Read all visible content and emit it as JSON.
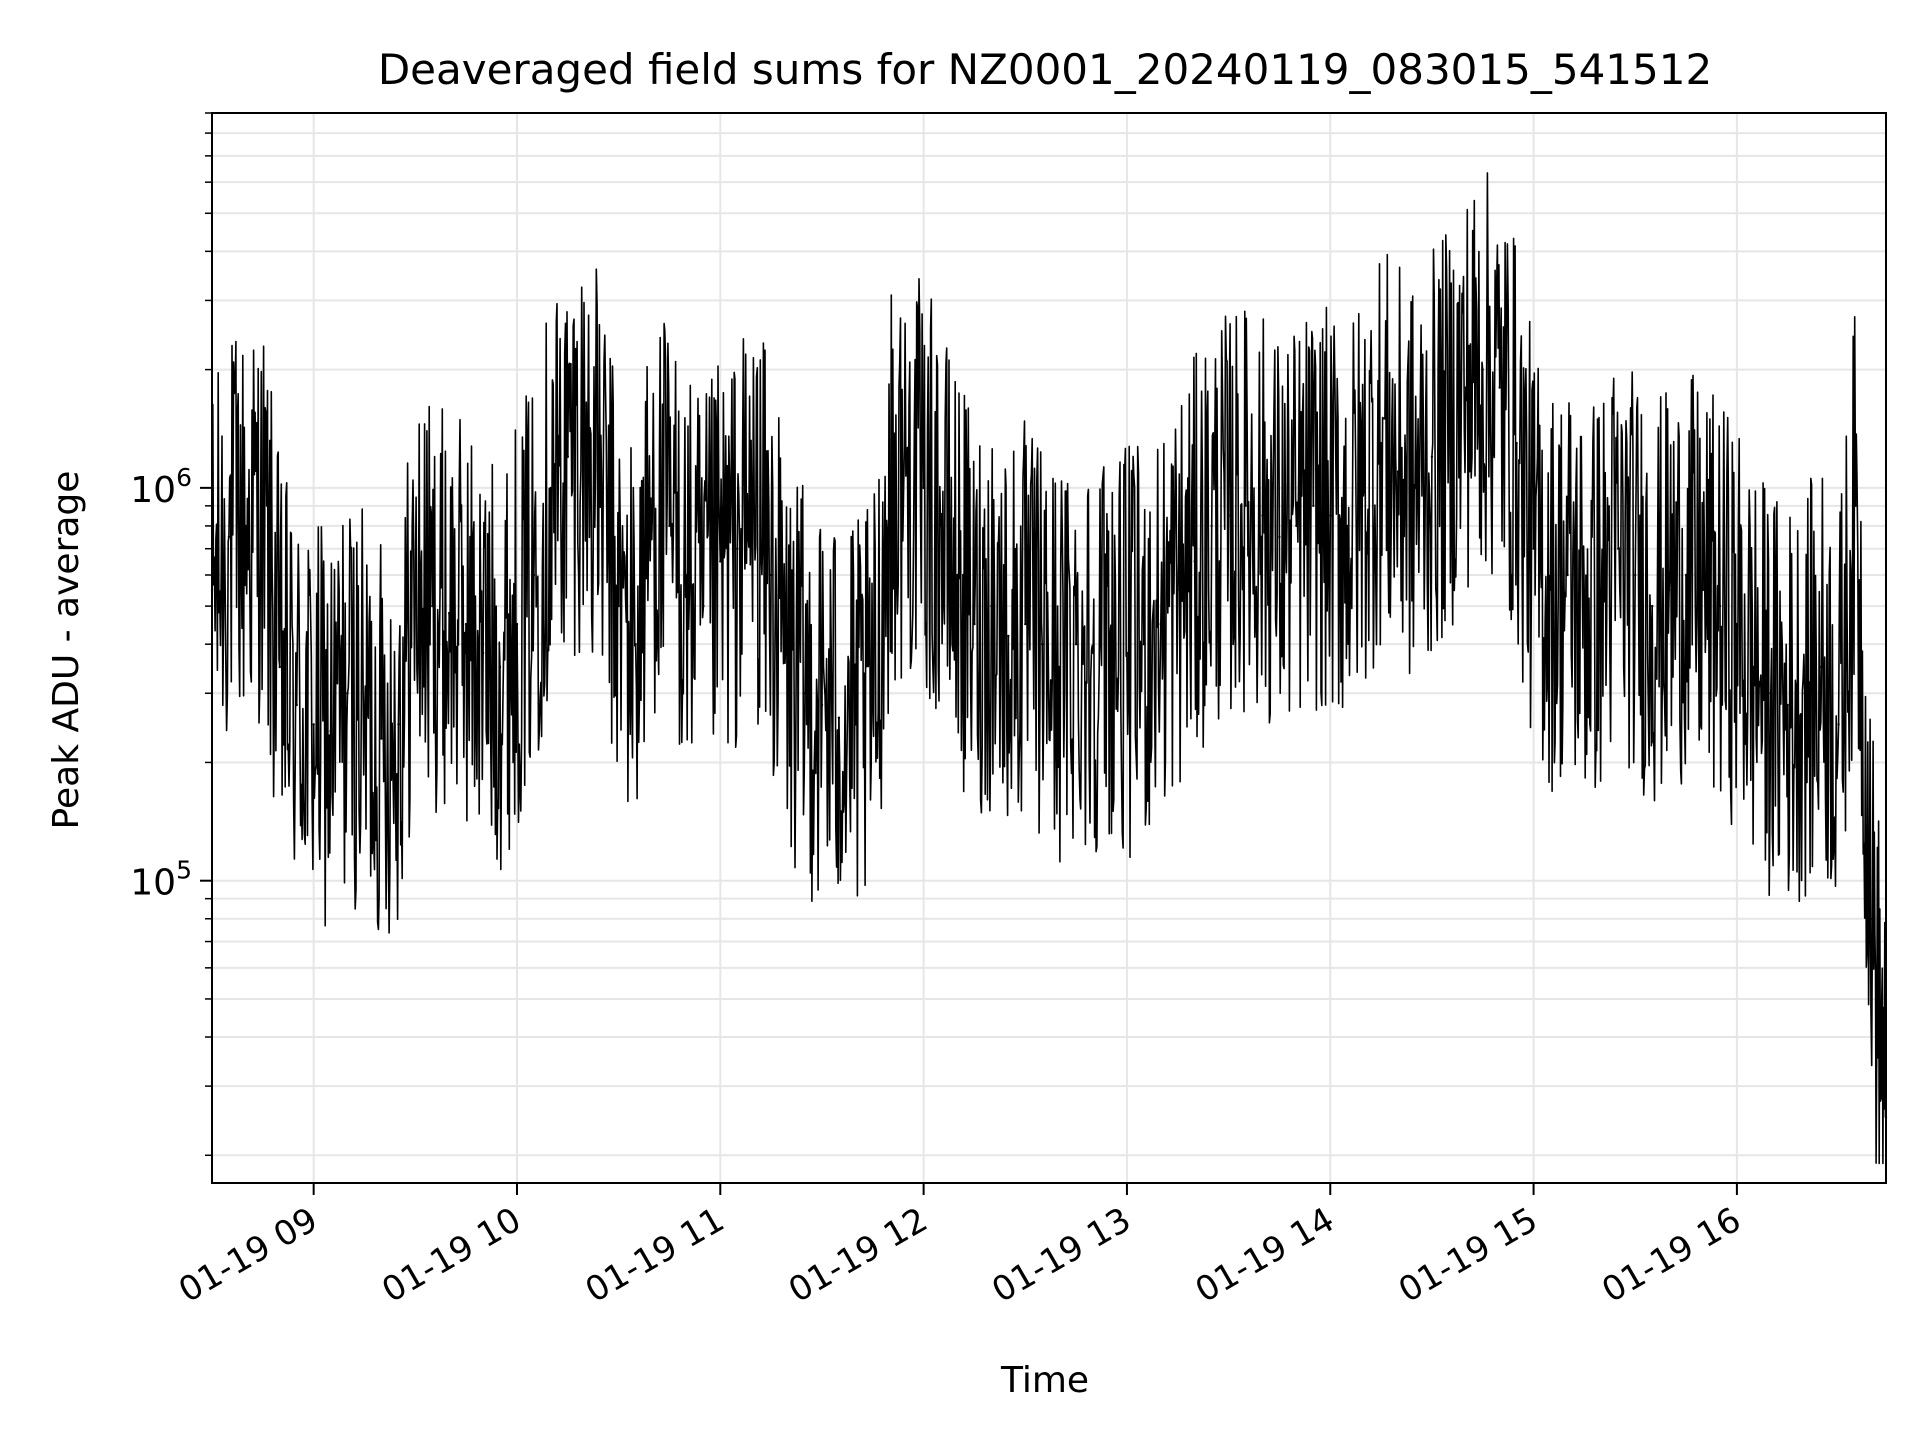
{
  "chart_data": {
    "type": "line",
    "title": "Deaveraged field sums for NZ0001_20240119_083015_541512",
    "xlabel": "Time",
    "ylabel": "Peak ADU - average",
    "y_scale": "log",
    "xlim": [
      "2024-01-19 08:30",
      "2024-01-19 16:44"
    ],
    "ylim": [
      17000,
      9000000
    ],
    "x_ticks": [
      {
        "time": "2024-01-19 09:00",
        "label": "01-19 09"
      },
      {
        "time": "2024-01-19 10:00",
        "label": "01-19 10"
      },
      {
        "time": "2024-01-19 11:00",
        "label": "01-19 11"
      },
      {
        "time": "2024-01-19 12:00",
        "label": "01-19 12"
      },
      {
        "time": "2024-01-19 13:00",
        "label": "01-19 13"
      },
      {
        "time": "2024-01-19 14:00",
        "label": "01-19 14"
      },
      {
        "time": "2024-01-19 15:00",
        "label": "01-19 15"
      },
      {
        "time": "2024-01-19 16:00",
        "label": "01-19 16"
      }
    ],
    "y_ticks": [
      {
        "value": 100000,
        "base": "10",
        "exp": "5"
      },
      {
        "value": 1000000,
        "base": "10",
        "exp": "6"
      }
    ],
    "grid": true,
    "line_color": "#000000",
    "grid_color": "#e6e6e6",
    "series": [
      {
        "points": [
          [
            "2024-01-19 08:30",
            550000
          ],
          [
            "2024-01-19 08:35",
            750000
          ],
          [
            "2024-01-19 08:40",
            800000
          ],
          [
            "2024-01-19 08:45",
            850000
          ],
          [
            "2024-01-19 08:50",
            350000
          ],
          [
            "2024-01-19 08:55",
            280000
          ],
          [
            "2024-01-19 09:00",
            250000
          ],
          [
            "2024-01-19 09:05",
            240000
          ],
          [
            "2024-01-19 09:10",
            300000
          ],
          [
            "2024-01-19 09:15",
            260000
          ],
          [
            "2024-01-19 09:20",
            230000
          ],
          [
            "2024-01-19 09:25",
            250000
          ],
          [
            "2024-01-19 09:30",
            550000
          ],
          [
            "2024-01-19 09:35",
            500000
          ],
          [
            "2024-01-19 09:40",
            480000
          ],
          [
            "2024-01-19 09:45",
            450000
          ],
          [
            "2024-01-19 09:50",
            380000
          ],
          [
            "2024-01-19 09:55",
            350000
          ],
          [
            "2024-01-19 10:00",
            450000
          ],
          [
            "2024-01-19 10:05",
            600000
          ],
          [
            "2024-01-19 10:10",
            1000000
          ],
          [
            "2024-01-19 10:15",
            1200000
          ],
          [
            "2024-01-19 10:20",
            1300000
          ],
          [
            "2024-01-19 10:25",
            1000000
          ],
          [
            "2024-01-19 10:30",
            500000
          ],
          [
            "2024-01-19 10:35",
            400000
          ],
          [
            "2024-01-19 10:40",
            900000
          ],
          [
            "2024-01-19 10:45",
            800000
          ],
          [
            "2024-01-19 10:50",
            600000
          ],
          [
            "2024-01-19 10:55",
            500000
          ],
          [
            "2024-01-19 11:00",
            650000
          ],
          [
            "2024-01-19 11:05",
            700000
          ],
          [
            "2024-01-19 11:10",
            900000
          ],
          [
            "2024-01-19 11:15",
            600000
          ],
          [
            "2024-01-19 11:20",
            350000
          ],
          [
            "2024-01-19 11:25",
            300000
          ],
          [
            "2024-01-19 11:30",
            280000
          ],
          [
            "2024-01-19 11:35",
            260000
          ],
          [
            "2024-01-19 11:40",
            250000
          ],
          [
            "2024-01-19 11:45",
            270000
          ],
          [
            "2024-01-19 11:50",
            950000
          ],
          [
            "2024-01-19 11:55",
            1100000
          ],
          [
            "2024-01-19 12:00",
            1000000
          ],
          [
            "2024-01-19 12:05",
            800000
          ],
          [
            "2024-01-19 12:10",
            600000
          ],
          [
            "2024-01-19 12:15",
            450000
          ],
          [
            "2024-01-19 12:20",
            500000
          ],
          [
            "2024-01-19 12:25",
            420000
          ],
          [
            "2024-01-19 12:30",
            450000
          ],
          [
            "2024-01-19 12:35",
            400000
          ],
          [
            "2024-01-19 12:40",
            350000
          ],
          [
            "2024-01-19 12:45",
            400000
          ],
          [
            "2024-01-19 12:50",
            380000
          ],
          [
            "2024-01-19 12:55",
            420000
          ],
          [
            "2024-01-19 13:00",
            380000
          ],
          [
            "2024-01-19 13:05",
            400000
          ],
          [
            "2024-01-19 13:10",
            450000
          ],
          [
            "2024-01-19 13:15",
            550000
          ],
          [
            "2024-01-19 13:20",
            650000
          ],
          [
            "2024-01-19 13:25",
            800000
          ],
          [
            "2024-01-19 13:30",
            850000
          ],
          [
            "2024-01-19 13:35",
            900000
          ],
          [
            "2024-01-19 13:40",
            850000
          ],
          [
            "2024-01-19 13:45",
            750000
          ],
          [
            "2024-01-19 13:50",
            800000
          ],
          [
            "2024-01-19 13:55",
            900000
          ],
          [
            "2024-01-19 14:00",
            850000
          ],
          [
            "2024-01-19 14:05",
            800000
          ],
          [
            "2024-01-19 14:10",
            1000000
          ],
          [
            "2024-01-19 14:15",
            1300000
          ],
          [
            "2024-01-19 14:20",
            1100000
          ],
          [
            "2024-01-19 14:25",
            1000000
          ],
          [
            "2024-01-19 14:30",
            1200000
          ],
          [
            "2024-01-19 14:35",
            1400000
          ],
          [
            "2024-01-19 14:40",
            1800000
          ],
          [
            "2024-01-19 14:45",
            2000000
          ],
          [
            "2024-01-19 14:50",
            1800000
          ],
          [
            "2024-01-19 14:55",
            1300000
          ],
          [
            "2024-01-19 15:00",
            700000
          ],
          [
            "2024-01-19 15:05",
            550000
          ],
          [
            "2024-01-19 15:10",
            600000
          ],
          [
            "2024-01-19 15:15",
            500000
          ],
          [
            "2024-01-19 15:20",
            550000
          ],
          [
            "2024-01-19 15:25",
            700000
          ],
          [
            "2024-01-19 15:30",
            600000
          ],
          [
            "2024-01-19 15:35",
            500000
          ],
          [
            "2024-01-19 15:40",
            550000
          ],
          [
            "2024-01-19 15:45",
            600000
          ],
          [
            "2024-01-19 15:50",
            550000
          ],
          [
            "2024-01-19 15:55",
            500000
          ],
          [
            "2024-01-19 16:00",
            450000
          ],
          [
            "2024-01-19 16:05",
            350000
          ],
          [
            "2024-01-19 16:10",
            300000
          ],
          [
            "2024-01-19 16:15",
            280000
          ],
          [
            "2024-01-19 16:20",
            300000
          ],
          [
            "2024-01-19 16:25",
            350000
          ],
          [
            "2024-01-19 16:30",
            250000
          ],
          [
            "2024-01-19 16:35",
            900000
          ],
          [
            "2024-01-19 16:40",
            80000
          ],
          [
            "2024-01-19 16:44",
            25000
          ]
        ]
      }
    ]
  }
}
